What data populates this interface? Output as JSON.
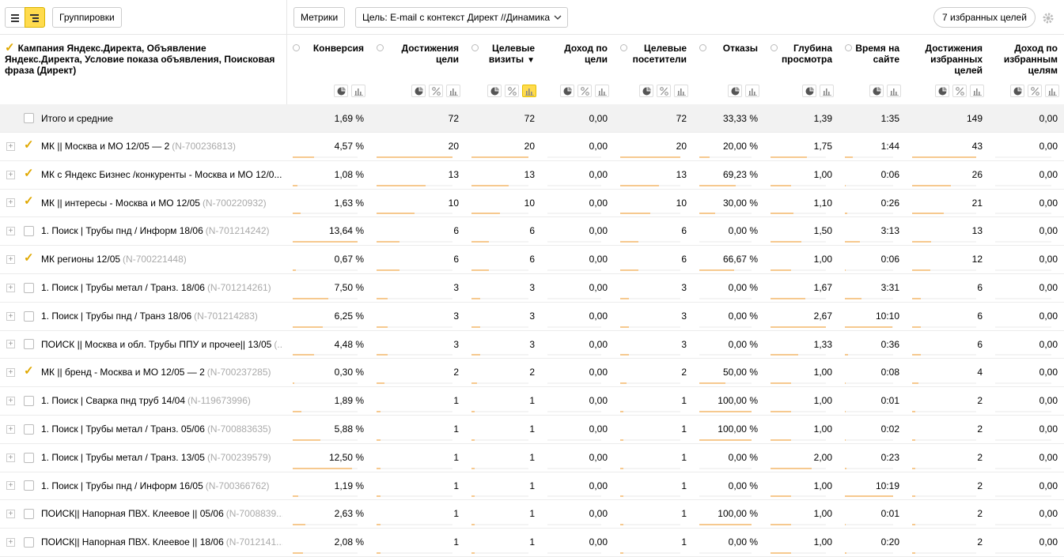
{
  "toolbar": {
    "groupings_button": "Группировки",
    "metrics_button": "Метрики",
    "goal_select": "Цель: E-mail с контекст Директ //Динамика",
    "favorites_button": "7 избранных целей"
  },
  "table": {
    "dimension_header": "Кампания Яндекс.Директа, Объявление Яндекс.Директа, Условие показа объявления, Поисковая фраза (Директ)",
    "columns": [
      {
        "label": "Конверсия",
        "marker": true,
        "percent_toggle": false
      },
      {
        "label": "Достижения цели",
        "marker": true,
        "percent_toggle": true
      },
      {
        "label": "Целевые визиты",
        "marker": true,
        "percent_toggle": true,
        "sort": "▼",
        "active_chart": true
      },
      {
        "label": "Доход по цели",
        "marker": false,
        "percent_toggle": true
      },
      {
        "label": "Целевые посетители",
        "marker": true,
        "percent_toggle": true
      },
      {
        "label": "Отказы",
        "marker": true,
        "percent_toggle": false
      },
      {
        "label": "Глубина просмотра",
        "marker": true,
        "percent_toggle": false
      },
      {
        "label": "Время на сайте",
        "marker": true,
        "percent_toggle": false
      },
      {
        "label": "Достижения избранных целей",
        "marker": false,
        "percent_toggle": true
      },
      {
        "label": "Доход по избранным целям",
        "marker": false,
        "percent_toggle": true
      }
    ],
    "totals": {
      "label": "Итого и средние",
      "values": [
        "1,69 %",
        "72",
        "72",
        "0,00",
        "72",
        "33,33 %",
        "1,39",
        "1:35",
        "149",
        "0,00"
      ]
    },
    "rows": [
      {
        "name": "МК  || Москва и МО 12/05 — 2",
        "id": "(N-700236813)",
        "checked": true,
        "values": [
          "4,57 %",
          "20",
          "20",
          "0,00",
          "20",
          "20,00 %",
          "1,75",
          "1:44",
          "43",
          "0,00"
        ]
      },
      {
        "name": "МК с Яндекс Бизнес /конкуренты - Москва и МО 12/0...",
        "checked": true,
        "values": [
          "1,08 %",
          "13",
          "13",
          "0,00",
          "13",
          "69,23 %",
          "1,00",
          "0:06",
          "26",
          "0,00"
        ]
      },
      {
        "name": "МК || интересы - Москва и МО 12/05",
        "id": "(N-700220932)",
        "checked": true,
        "values": [
          "1,63 %",
          "10",
          "10",
          "0,00",
          "10",
          "30,00 %",
          "1,10",
          "0:26",
          "21",
          "0,00"
        ]
      },
      {
        "name": "1. Поиск | Трубы пнд / Информ 18/06",
        "id": "(N-701214242)",
        "checked": false,
        "values": [
          "13,64 %",
          "6",
          "6",
          "0,00",
          "6",
          "0,00 %",
          "1,50",
          "3:13",
          "13",
          "0,00"
        ]
      },
      {
        "name": "МК регионы 12/05",
        "id": "(N-700221448)",
        "checked": true,
        "values": [
          "0,67 %",
          "6",
          "6",
          "0,00",
          "6",
          "66,67 %",
          "1,00",
          "0:06",
          "12",
          "0,00"
        ]
      },
      {
        "name": "1. Поиск | Трубы метал / Транз. 18/06",
        "id": "(N-701214261)",
        "checked": false,
        "values": [
          "7,50 %",
          "3",
          "3",
          "0,00",
          "3",
          "0,00 %",
          "1,67",
          "3:31",
          "6",
          "0,00"
        ]
      },
      {
        "name": "1. Поиск | Трубы пнд / Транз 18/06",
        "id": "(N-701214283)",
        "checked": false,
        "values": [
          "6,25 %",
          "3",
          "3",
          "0,00",
          "3",
          "0,00 %",
          "2,67",
          "10:10",
          "6",
          "0,00"
        ]
      },
      {
        "name": "ПОИСК || Москва и обл. Трубы ППУ и прочее|| 13/05",
        "id": "(...",
        "checked": false,
        "values": [
          "4,48 %",
          "3",
          "3",
          "0,00",
          "3",
          "0,00 %",
          "1,33",
          "0:36",
          "6",
          "0,00"
        ]
      },
      {
        "name": "МК || бренд - Москва и МО  12/05 — 2",
        "id": "(N-700237285)",
        "checked": true,
        "values": [
          "0,30 %",
          "2",
          "2",
          "0,00",
          "2",
          "50,00 %",
          "1,00",
          "0:08",
          "4",
          "0,00"
        ]
      },
      {
        "name": "1. Поиск | Сварка пнд труб 14/04",
        "id": "(N-119673996)",
        "checked": false,
        "values": [
          "1,89 %",
          "1",
          "1",
          "0,00",
          "1",
          "100,00 %",
          "1,00",
          "0:01",
          "2",
          "0,00"
        ]
      },
      {
        "name": "1. Поиск | Трубы метал / Транз. 05/06",
        "id": "(N-700883635)",
        "checked": false,
        "values": [
          "5,88 %",
          "1",
          "1",
          "0,00",
          "1",
          "100,00 %",
          "1,00",
          "0:02",
          "2",
          "0,00"
        ]
      },
      {
        "name": "1. Поиск | Трубы метал / Транз. 13/05",
        "id": "(N-700239579)",
        "checked": false,
        "values": [
          "12,50 %",
          "1",
          "1",
          "0,00",
          "1",
          "0,00 %",
          "2,00",
          "0:23",
          "2",
          "0,00"
        ]
      },
      {
        "name": "1. Поиск | Трубы пнд / Информ 16/05",
        "id": "(N-700366762)",
        "checked": false,
        "values": [
          "1,19 %",
          "1",
          "1",
          "0,00",
          "1",
          "0,00 %",
          "1,00",
          "10:19",
          "2",
          "0,00"
        ]
      },
      {
        "name": "ПОИСК|| Напорная ПВХ. Клеевое || 05/06",
        "id": "(N-7008839...",
        "checked": false,
        "values": [
          "2,63 %",
          "1",
          "1",
          "0,00",
          "1",
          "100,00 %",
          "1,00",
          "0:01",
          "2",
          "0,00"
        ]
      },
      {
        "name": "ПОИСК|| Напорная ПВХ. Клеевое || 18/06",
        "id": "(N-7012141...",
        "checked": false,
        "values": [
          "2,08 %",
          "1",
          "1",
          "0,00",
          "1",
          "0,00 %",
          "1,00",
          "0:20",
          "2",
          "0,00"
        ]
      }
    ]
  }
}
